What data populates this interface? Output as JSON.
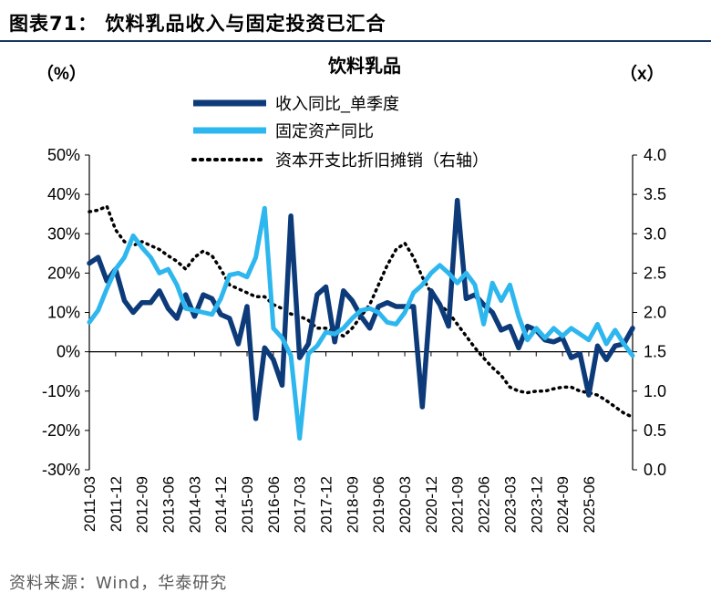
{
  "header": {
    "title": "图表71： 饮料乳品收入与固定投资已汇合"
  },
  "footer": {
    "source": "资料来源：Wind，华泰研究"
  },
  "colors": {
    "income": "#0d3b7a",
    "fixed": "#2eb7ee",
    "dep": "#000000"
  },
  "chart_data": {
    "type": "line",
    "title": "饮料乳品",
    "ylabel_left": "（%）",
    "ylabel_right": "（x）",
    "xticks": [
      "2011-03",
      "2011-12",
      "2012-09",
      "2013-06",
      "2014-03",
      "2014-12",
      "2015-09",
      "2016-06",
      "2017-03",
      "2017-12",
      "2018-09",
      "2019-06",
      "2020-03",
      "2020-12",
      "2021-09",
      "2022-06",
      "2023-03",
      "2023-12",
      "2024-09",
      "2025-06"
    ],
    "y_left": {
      "min": -30,
      "max": 50,
      "step": 10,
      "labels": [
        "50%",
        "40%",
        "30%",
        "20%",
        "10%",
        "0%",
        "-10%",
        "-20%",
        "-30%"
      ]
    },
    "y_right": {
      "min": 0,
      "max": 4,
      "step": 0.5,
      "labels": [
        "4.0",
        "3.5",
        "3.0",
        "2.5",
        "2.0",
        "1.5",
        "1.0",
        "0.5",
        "0.0"
      ]
    },
    "legend": {
      "placement": "top-center"
    },
    "series": [
      {
        "name": "收入同比_单季度",
        "axis": "left",
        "style": "solid-thick",
        "values": [
          22.5,
          24,
          18,
          21,
          13,
          10,
          12.5,
          12.5,
          15.5,
          11,
          8.5,
          14.5,
          9,
          14.5,
          13.5,
          9.5,
          8.5,
          2,
          11.5,
          -17,
          1,
          -2,
          -8.5,
          34.5,
          -1.5,
          2,
          14.5,
          16.5,
          2.5,
          15.5,
          13,
          9,
          6,
          11.5,
          12.5,
          11.5,
          11.5,
          11.5,
          -14,
          15.5,
          12,
          6.5,
          38.5,
          13.5,
          14.5,
          12,
          10,
          5.5,
          6.5,
          1,
          6.5,
          5.5,
          3,
          2.5,
          3.5,
          -1.5,
          -0.5,
          -11,
          1.5,
          -2,
          1.5,
          2,
          6
        ]
      },
      {
        "name": "固定资产同比",
        "axis": "left",
        "style": "solid",
        "values": [
          7.5,
          10.5,
          16,
          21,
          24,
          29.5,
          26.5,
          24,
          20,
          21,
          17,
          11,
          10.5,
          10,
          9.5,
          13.5,
          19.5,
          20,
          19,
          24,
          36.5,
          6,
          3.5,
          -1,
          -22,
          -0.5,
          1.5,
          5,
          4.5,
          6,
          8.5,
          10.5,
          11,
          10,
          7.5,
          7,
          10,
          15,
          17,
          20,
          22,
          20,
          17.5,
          20,
          17,
          7,
          17.5,
          13,
          17,
          9,
          3,
          6,
          3.5,
          6,
          4,
          6,
          4.5,
          3,
          7,
          2,
          5.5,
          2,
          -1
        ]
      },
      {
        "name": "资本开支比折旧摊销（右轴）",
        "axis": "right",
        "style": "dotted",
        "values": [
          3.28,
          3.3,
          3.35,
          3.05,
          2.9,
          2.85,
          2.9,
          2.85,
          2.8,
          2.72,
          2.65,
          2.55,
          2.7,
          2.78,
          2.72,
          2.55,
          2.35,
          2.3,
          2.25,
          2.2,
          2.2,
          2.1,
          2.05,
          1.98,
          1.95,
          1.9,
          1.8,
          1.8,
          1.75,
          1.7,
          1.8,
          1.95,
          2.1,
          2.35,
          2.6,
          2.8,
          2.88,
          2.7,
          2.45,
          2.25,
          2.1,
          2.0,
          1.85,
          1.7,
          1.55,
          1.42,
          1.3,
          1.2,
          1.05,
          1.0,
          0.98,
          1.0,
          1.0,
          1.03,
          1.05,
          1.05,
          1.0,
          0.98,
          0.95,
          0.88,
          0.8,
          0.72,
          0.67
        ]
      }
    ]
  }
}
